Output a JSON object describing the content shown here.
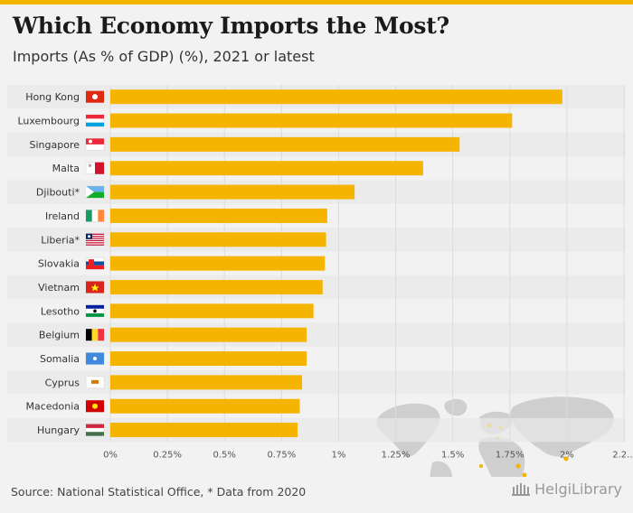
{
  "header": {
    "title": "Which Economy Imports the Most?",
    "subtitle": "Imports (As % of GDP) (%), 2021 or latest"
  },
  "footer": {
    "source": "Source: National Statistical Office, * Data from 2020",
    "brand": "HelgiLibrary"
  },
  "colors": {
    "bar": "#f5b400",
    "accent": "#f5b400",
    "row_shade": "#e8e8e8",
    "map": "#cfcfcf"
  },
  "chart_data": {
    "type": "bar",
    "orientation": "horizontal",
    "categories": [
      "Hong Kong",
      "Luxembourg",
      "Singapore",
      "Malta",
      "Djibouti*",
      "Ireland",
      "Liberia*",
      "Slovakia",
      "Vietnam",
      "Lesotho",
      "Belgium",
      "Somalia",
      "Cyprus",
      "Macedonia",
      "Hungary"
    ],
    "flag_icons": [
      "hong-kong-flag-icon",
      "luxembourg-flag-icon",
      "singapore-flag-icon",
      "malta-flag-icon",
      "djibouti-flag-icon",
      "ireland-flag-icon",
      "liberia-flag-icon",
      "slovakia-flag-icon",
      "vietnam-flag-icon",
      "lesotho-flag-icon",
      "belgium-flag-icon",
      "somalia-flag-icon",
      "cyprus-flag-icon",
      "macedonia-flag-icon",
      "hungary-flag-icon"
    ],
    "values": [
      1.98,
      1.76,
      1.53,
      1.37,
      1.07,
      0.95,
      0.945,
      0.94,
      0.93,
      0.89,
      0.86,
      0.86,
      0.84,
      0.83,
      0.82
    ],
    "xlim": [
      0,
      2.25
    ],
    "xticks": [
      0,
      0.25,
      0.5,
      0.75,
      1,
      1.25,
      1.5,
      1.75,
      2,
      2.25
    ],
    "tick_labels": [
      "0%",
      "0.25%",
      "0.5%",
      "0.75%",
      "1%",
      "1.25%",
      "1.5%",
      "1.75%",
      "2%",
      "2.2..."
    ],
    "grid": true,
    "legend": "none"
  }
}
